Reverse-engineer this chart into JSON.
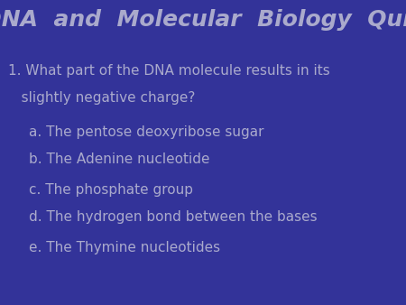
{
  "background_color": "#333399",
  "title": "DNA  and  Molecular  Biology  Quiz",
  "title_color": "#AAAACC",
  "title_fontsize": 18,
  "question_line1": "1. What part of the DNA molecule results in its",
  "question_line2": "   slightly negative charge?",
  "question_color": "#AAAACC",
  "question_fontsize": 11,
  "answers": [
    "a. The pentose deoxyribose sugar",
    "b. The Adenine nucleotide",
    "c. The phosphate group",
    "d. The hydrogen bond between the bases",
    "e. The Thymine nucleotides"
  ],
  "answer_color": "#AAAACC",
  "answer_fontsize": 11,
  "answer_indent": 0.07
}
